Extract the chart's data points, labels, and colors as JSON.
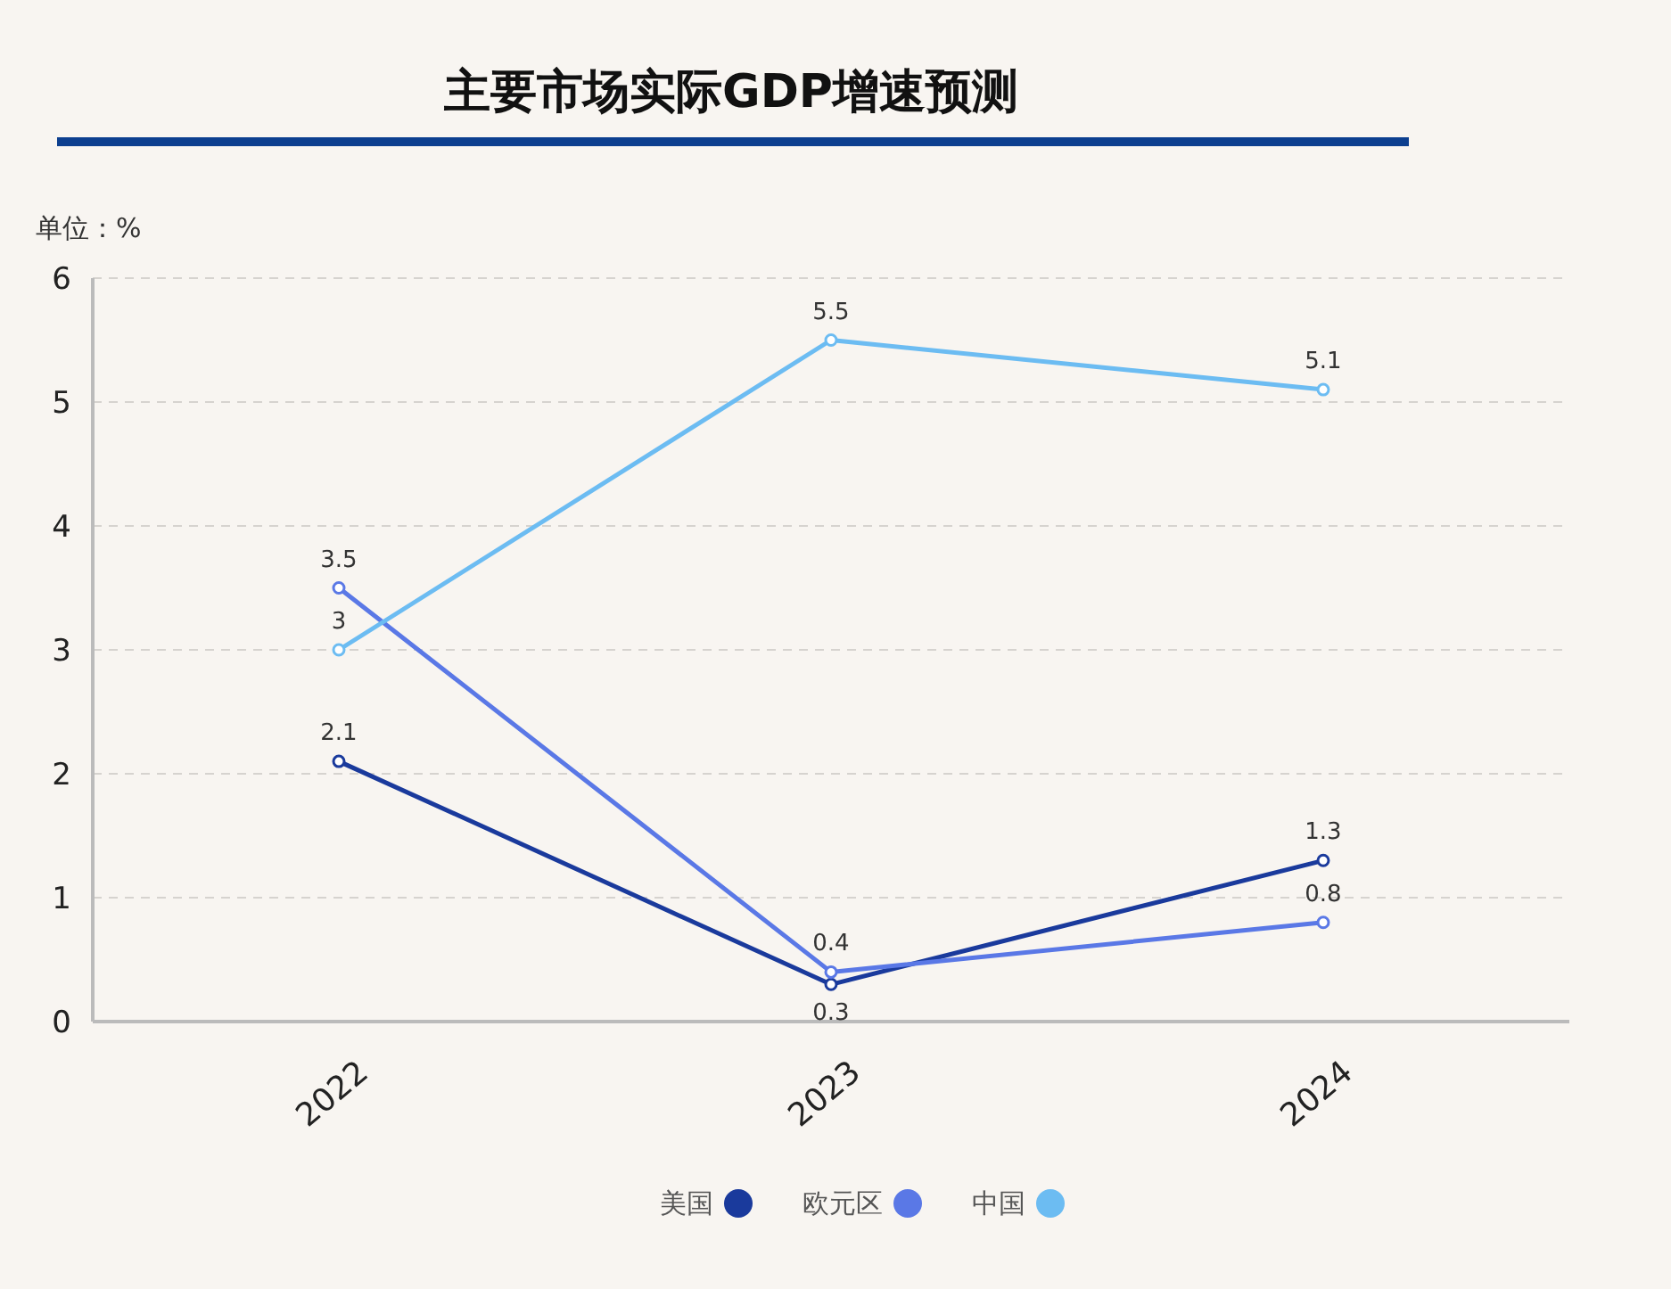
{
  "chart_data": {
    "type": "line",
    "title": "主要市场实际GDP增速预测",
    "ylabel": "单位：%",
    "categories": [
      "2022",
      "2023",
      "2024"
    ],
    "series": [
      {
        "name": "美国",
        "color": "#1a3a9c",
        "values": [
          2.1,
          0.3,
          1.3
        ]
      },
      {
        "name": "欧元区",
        "color": "#5a78e6",
        "values": [
          3.5,
          0.4,
          0.8
        ]
      },
      {
        "name": "中国",
        "color": "#6cbcf2",
        "values": [
          3,
          5.5,
          5.1
        ]
      }
    ],
    "ylim": [
      0,
      6
    ],
    "yticks": [
      0,
      1,
      2,
      3,
      4,
      5,
      6
    ],
    "grid": "y",
    "legend": "bottom",
    "marker": "circle",
    "line_style": "solid",
    "data_labels": true
  }
}
